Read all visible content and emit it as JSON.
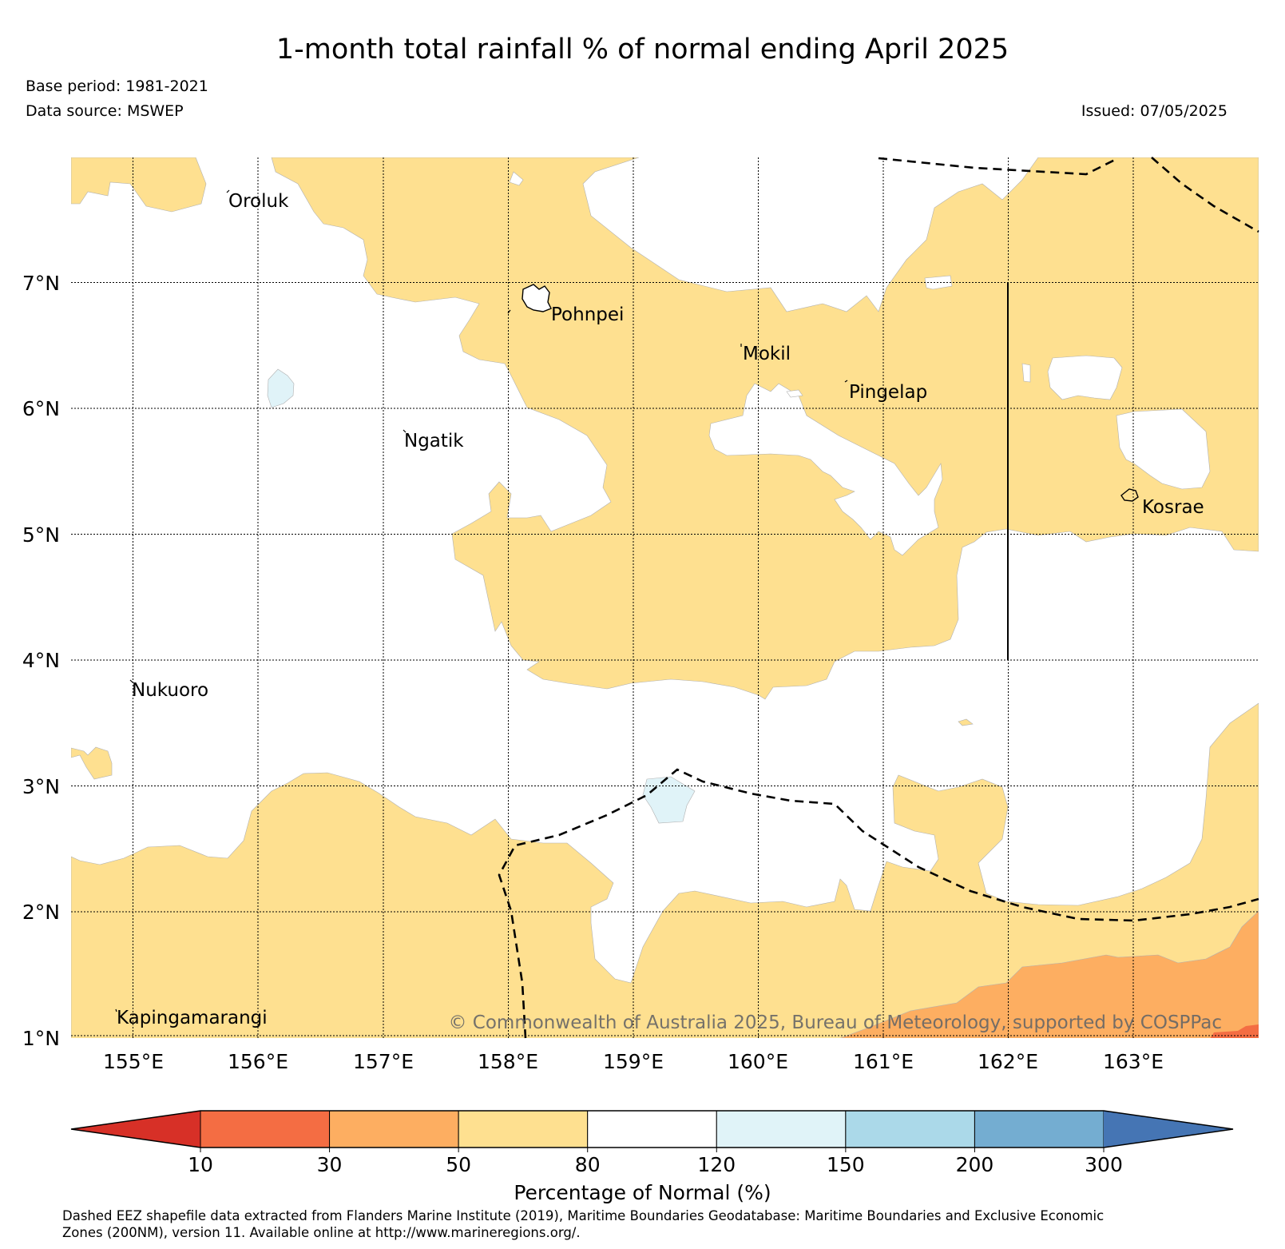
{
  "header": {
    "title": "1-month total rainfall % of normal ending April 2025",
    "base_period": "Base period: 1981-2021",
    "data_source": "Data source: MSWEP",
    "issued": "Issued: 07/05/2025"
  },
  "map": {
    "extent": {
      "lon": [
        154.5,
        164.0
      ],
      "lat": [
        1.0,
        8.0
      ]
    },
    "lon_ticks": [
      "155°E",
      "156°E",
      "157°E",
      "158°E",
      "159°E",
      "160°E",
      "161°E",
      "162°E",
      "163°E"
    ],
    "lat_ticks": [
      "7°N",
      "6°N",
      "5°N",
      "4°N",
      "3°N",
      "2°N",
      "1°N"
    ],
    "places": [
      "Oroluk",
      "Pohnpei",
      "Mokil",
      "Pingelap",
      "Ngatik",
      "Kosrae",
      "Nukuoro",
      "Kapingamarangi"
    ],
    "copyright": "© Commonwealth of Australia 2025, Bureau of Meteorology, supported by COSPPac",
    "colors": {
      "below_10": "#d73027",
      "10_30": "#f46d43",
      "30_50": "#fdae61",
      "50_80": "#fee090",
      "80_120": "#ffffff",
      "120_150": "#e0f3f8",
      "150_200": "#abd9e9",
      "200_300": "#74add1",
      "above_300": "#4575b4"
    }
  },
  "colorbar": {
    "label": "Percentage of Normal (%)",
    "ticks": [
      "10",
      "30",
      "50",
      "80",
      "120",
      "150",
      "200",
      "300"
    ],
    "colors": [
      "#d73027",
      "#f46d43",
      "#fdae61",
      "#fee090",
      "#ffffff",
      "#e0f3f8",
      "#abd9e9",
      "#74add1",
      "#4575b4"
    ]
  },
  "footer": {
    "line1": "Dashed EEZ shapefile data extracted from Flanders Marine Institute (2019), Maritime Boundaries Geodatabase: Maritime Boundaries and Exclusive Economic",
    "line2": "Zones (200NM), version 11. Available online at http://www.marineregions.org/."
  }
}
